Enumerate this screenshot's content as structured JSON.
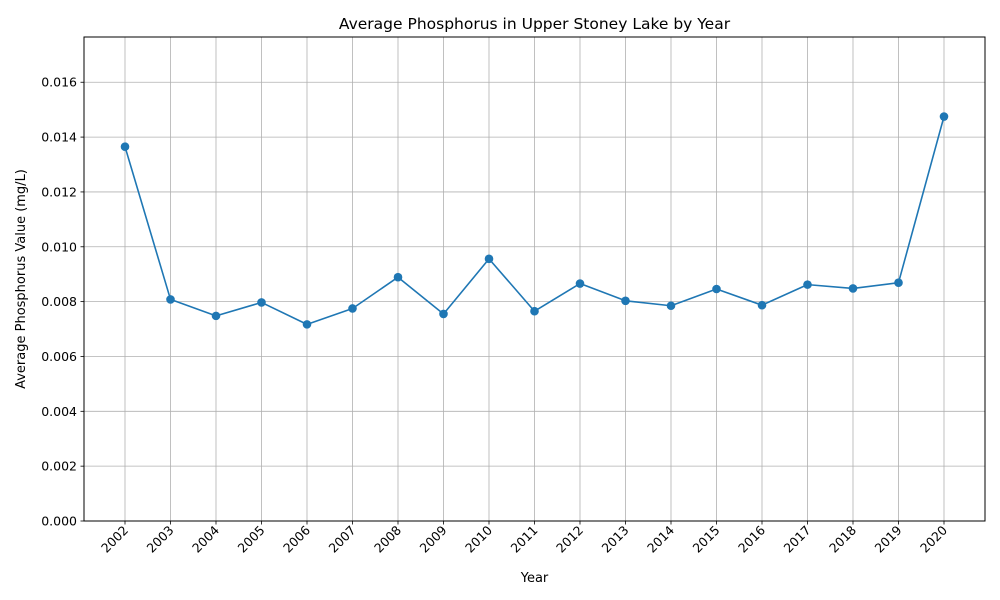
{
  "chart_data": {
    "type": "line",
    "title": "Average Phosphorus in Upper Stoney Lake by Year",
    "xlabel": "Year",
    "ylabel": "Average Phosphorus Value (mg/L)",
    "categories": [
      "2002",
      "2003",
      "2004",
      "2005",
      "2006",
      "2007",
      "2008",
      "2009",
      "2010",
      "2011",
      "2012",
      "2013",
      "2014",
      "2015",
      "2016",
      "2017",
      "2018",
      "2019",
      "2020"
    ],
    "series": [
      {
        "values": [
          0.01365,
          0.00808,
          0.00748,
          0.00797,
          0.00717,
          0.00775,
          0.00889,
          0.00755,
          0.00956,
          0.00765,
          0.00866,
          0.00803,
          0.00785,
          0.00846,
          0.00787,
          0.00862,
          0.00848,
          0.00869,
          0.01475
        ],
        "color": "#1f77b4",
        "marker": "circle"
      }
    ],
    "ylim": [
      0,
      0.01765
    ],
    "yticks": [
      "0.000",
      "0.002",
      "0.004",
      "0.006",
      "0.008",
      "0.010",
      "0.012",
      "0.014",
      "0.016"
    ],
    "grid": true
  }
}
